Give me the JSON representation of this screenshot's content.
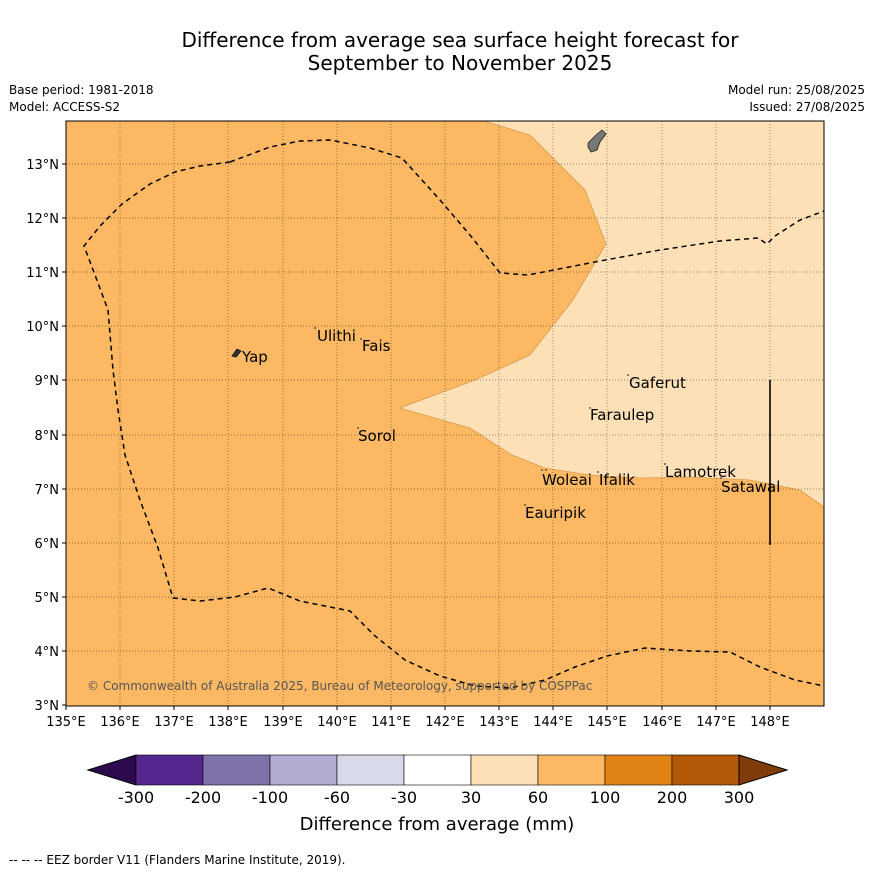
{
  "title_line1": "Difference from average sea surface height forecast for",
  "title_line2": "September to November 2025",
  "base_period": "Base period: 1981-2018",
  "model": "Model: ACCESS-S2",
  "model_run": "Model run: 25/08/2025",
  "issued": "Issued: 27/08/2025",
  "lat_labels": [
    "13°N",
    "12°N",
    "11°N",
    "10°N",
    "9°N",
    "8°N",
    "7°N",
    "6°N",
    "5°N",
    "4°N",
    "3°N"
  ],
  "lon_labels": [
    "135°E",
    "136°E",
    "137°E",
    "138°E",
    "139°E",
    "140°E",
    "141°E",
    "142°E",
    "143°E",
    "144°E",
    "145°E",
    "146°E",
    "147°E",
    "148°E"
  ],
  "places": {
    "yap": "Yap",
    "ulithi": "Ulithi",
    "fais": "Fais",
    "sorol": "Sorol",
    "gaferut": "Gaferut",
    "faraulep": "Faraulep",
    "woleai": "Woleai",
    "ifalik": "Ifalik",
    "lamotrek": "Lamotrek",
    "satawal": "Satawal",
    "eauripik": "Eauripik"
  },
  "copyright": "© Commonwealth of Australia 2025, Bureau of Meteorology, supported by COSPPac",
  "colorbar": {
    "title": "Difference from average (mm)",
    "ticks": [
      "-300",
      "-200",
      "-100",
      "-60",
      "-30",
      "30",
      "60",
      "100",
      "200",
      "300"
    ],
    "colors": {
      "below_min": "#2d0a4e",
      "c1": "#54278f",
      "c2": "#8073ac",
      "c3": "#b2abd2",
      "c4": "#d8daeb",
      "c5": "#ffffff",
      "c6": "#fee0b6",
      "c7": "#fdb863",
      "c8": "#e08214",
      "c9": "#b35806",
      "above_max": "#7f3b08"
    }
  },
  "footer": "--  --  -- EEZ border V11 (Flanders Marine Institute, 2019)."
}
